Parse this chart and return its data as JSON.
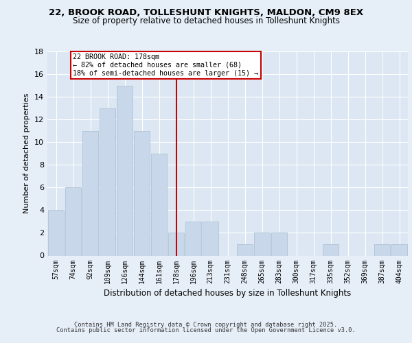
{
  "title1": "22, BROOK ROAD, TOLLESHUNT KNIGHTS, MALDON, CM9 8EX",
  "title2": "Size of property relative to detached houses in Tolleshunt Knights",
  "xlabel": "Distribution of detached houses by size in Tolleshunt Knights",
  "ylabel": "Number of detached properties",
  "bar_labels": [
    "57sqm",
    "74sqm",
    "92sqm",
    "109sqm",
    "126sqm",
    "144sqm",
    "161sqm",
    "178sqm",
    "196sqm",
    "213sqm",
    "231sqm",
    "248sqm",
    "265sqm",
    "283sqm",
    "300sqm",
    "317sqm",
    "335sqm",
    "352sqm",
    "369sqm",
    "387sqm",
    "404sqm"
  ],
  "bar_values": [
    4,
    6,
    11,
    13,
    15,
    11,
    9,
    2,
    3,
    3,
    0,
    1,
    2,
    2,
    0,
    0,
    1,
    0,
    0,
    1,
    1
  ],
  "bar_color": "#c8d8ea",
  "bar_edge_color": "#a8bdd0",
  "highlight_index": 7,
  "annotation_title": "22 BROOK ROAD: 178sqm",
  "annotation_line1": "← 82% of detached houses are smaller (68)",
  "annotation_line2": "18% of semi-detached houses are larger (15) →",
  "annotation_box_color": "#ffffff",
  "annotation_box_edge": "#cc0000",
  "vline_color": "#cc0000",
  "ylim": [
    0,
    18
  ],
  "yticks": [
    0,
    2,
    4,
    6,
    8,
    10,
    12,
    14,
    16,
    18
  ],
  "footer1": "Contains HM Land Registry data © Crown copyright and database right 2025.",
  "footer2": "Contains public sector information licensed under the Open Government Licence v3.0.",
  "background_color": "#e6eef7",
  "plot_background": "#dce7f3"
}
